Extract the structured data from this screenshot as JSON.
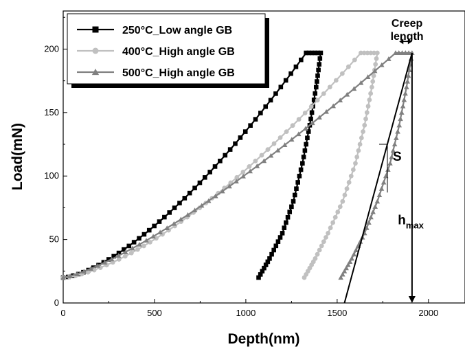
{
  "chart_data": {
    "type": "scatter",
    "xlabel": "Depth(nm)",
    "ylabel": "Load(mN)",
    "xlim": [
      0,
      2200
    ],
    "ylim": [
      0,
      230
    ],
    "x_ticks": [
      0,
      500,
      1000,
      1500,
      2000
    ],
    "y_ticks": [
      0,
      50,
      100,
      150,
      200
    ],
    "grid": false,
    "legend_position": "top-left",
    "series": [
      {
        "name": "250°C_Low angle GB",
        "marker": "square",
        "color": "#000000",
        "loading": {
          "x_start": 0,
          "y_start": 20,
          "x_end": 1330,
          "y_end": 197,
          "shape_exponent": 1.5
        },
        "hold": {
          "x_start": 1330,
          "x_end": 1410,
          "y": 197
        },
        "unloading": [
          [
            1410,
            197
          ],
          [
            1385,
            170
          ],
          [
            1350,
            140
          ],
          [
            1310,
            110
          ],
          [
            1260,
            80
          ],
          [
            1200,
            55
          ],
          [
            1130,
            35
          ],
          [
            1070,
            20
          ]
        ]
      },
      {
        "name": "400°C_High angle GB",
        "marker": "circle",
        "color": "#c0c0c0",
        "loading": {
          "x_start": 0,
          "y_start": 20,
          "x_end": 1630,
          "y_end": 197,
          "shape_exponent": 1.5
        },
        "hold": {
          "x_start": 1630,
          "x_end": 1720,
          "y": 197
        },
        "unloading": [
          [
            1720,
            197
          ],
          [
            1690,
            170
          ],
          [
            1650,
            140
          ],
          [
            1600,
            110
          ],
          [
            1530,
            80
          ],
          [
            1450,
            55
          ],
          [
            1380,
            35
          ],
          [
            1320,
            20
          ]
        ]
      },
      {
        "name": "500°C_High angle GB",
        "marker": "triangle",
        "color": "#808080",
        "loading": {
          "x_start": 0,
          "y_start": 20,
          "x_end": 1820,
          "y_end": 197,
          "shape_exponent": 1.3
        },
        "hold": {
          "x_start": 1820,
          "x_end": 1910,
          "y": 197
        },
        "unloading": [
          [
            1910,
            197
          ],
          [
            1880,
            170
          ],
          [
            1840,
            140
          ],
          [
            1790,
            110
          ],
          [
            1720,
            80
          ],
          [
            1650,
            55
          ],
          [
            1580,
            35
          ],
          [
            1520,
            20
          ]
        ]
      }
    ],
    "annotations": {
      "creep_length": {
        "label_line1": "Creep",
        "label_line2": "length",
        "x_from": 1840,
        "x_to": 1910,
        "y": 206
      },
      "tangent_line": {
        "x1": 1910,
        "y1": 197,
        "x2": 1540,
        "y2": 0
      },
      "stiffness": {
        "label": "S",
        "triangle_x_left": 1730,
        "triangle_x_right": 1775,
        "triangle_y_top": 125,
        "triangle_y_bottom": 87
      },
      "hmax": {
        "label": "h",
        "subscript": "max",
        "x": 1910,
        "y_from": 197,
        "y_to": 0,
        "label_x": 1915,
        "label_y": 62
      }
    }
  }
}
